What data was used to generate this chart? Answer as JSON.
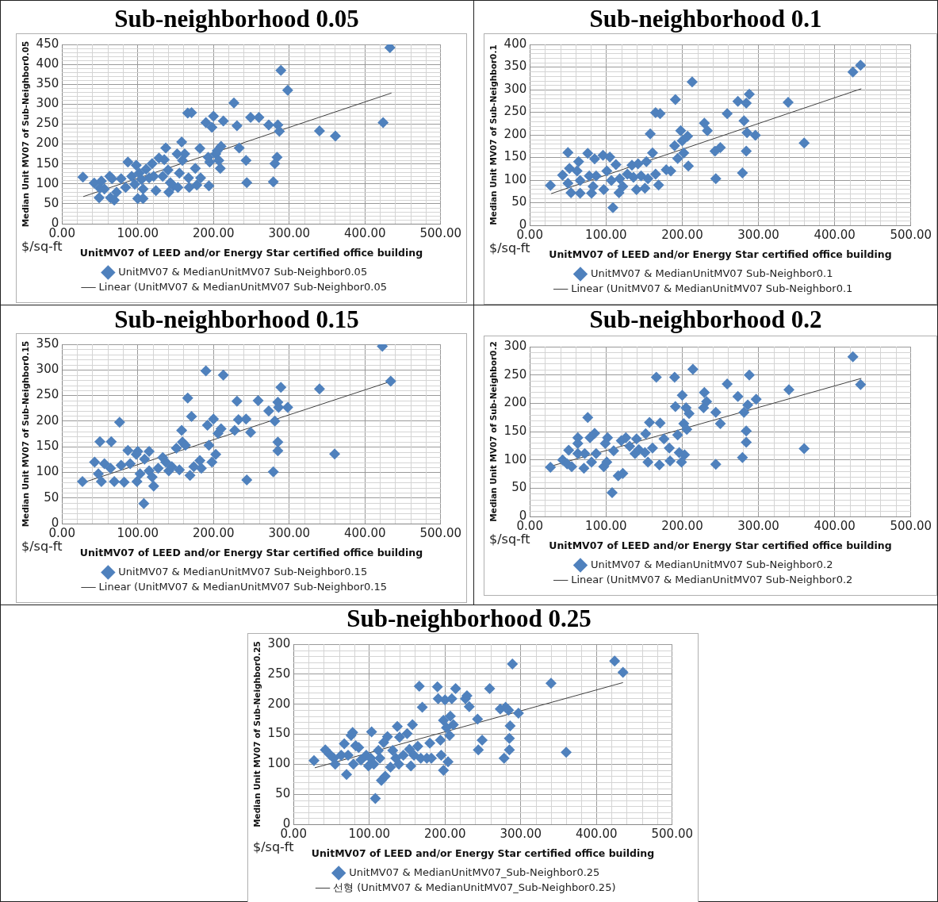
{
  "chart_data": [
    {
      "type": "scatter",
      "title": "Sub-neighborhood 0.05",
      "xlabel": "UnitMV07 of LEED and/or Energy Star certified office building",
      "ylabel": "Median Unit MV07 of Sub-Neighbor0.05",
      "annotations": [
        "$/sq-ft"
      ],
      "xlim": [
        0,
        500
      ],
      "xticks": [
        {
          "value": 0,
          "label": "0.00"
        },
        {
          "value": 100,
          "label": "100.00"
        },
        {
          "value": 200,
          "label": "200.00"
        },
        {
          "value": 300,
          "label": "300.00"
        },
        {
          "value": 400,
          "label": "400.00"
        },
        {
          "value": 500,
          "label": "500.00"
        }
      ],
      "ylim": [
        0,
        450
      ],
      "yticks": [
        0,
        50,
        100,
        150,
        200,
        250,
        300,
        350,
        400,
        450
      ],
      "grid": true,
      "legend": "bottom",
      "marker": "diamond",
      "series": [
        {
          "name": "UnitMV07 & MedianUnitMV07 Sub-Neighbor0.05",
          "color": "#4f81bd",
          "x": [
            27.6,
            42.5,
            52,
            50,
            49,
            56,
            63,
            66,
            64,
            69,
            72,
            78,
            84,
            87,
            92,
            96,
            98,
            102,
            100,
            107,
            105,
            107,
            111,
            115,
            119,
            121,
            124,
            128,
            133,
            135,
            137,
            140,
            141,
            143,
            147,
            152,
            153,
            155,
            158,
            159,
            162,
            167,
            168,
            166,
            171,
            176,
            178,
            182,
            183,
            190,
            193,
            194,
            195,
            198,
            200,
            203,
            205,
            207,
            209,
            210,
            213,
            227,
            231,
            234,
            243,
            244,
            249,
            260,
            273,
            279,
            281,
            284,
            285,
            287,
            289,
            298,
            340,
            361,
            424,
            433
          ],
          "values": [
            117,
            102,
            107,
            89,
            65,
            87,
            119,
            113,
            65,
            59,
            79,
            113,
            91,
            155,
            119,
            99,
            147,
            127,
            63,
            63,
            111,
            87,
            137,
            115,
            151,
            119,
            83,
            165,
            119,
            161,
            190,
            135,
            79,
            103,
            95,
            175,
            91,
            127,
            205,
            159,
            175,
            115,
            91,
            278,
            279,
            139,
            97,
            189,
            115,
            254,
            167,
            95,
            155,
            242,
            270,
            175,
            183,
            159,
            139,
            194,
            258,
            303,
            246,
            190,
            159,
            103,
            267,
            267,
            248,
            105,
            151,
            167,
            248,
            232,
            385,
            335,
            233,
            220,
            254,
            442
          ]
        },
        {
          "name": "Linear (UnitMV07 & MedianUnitMV07 Sub-Neighbor0.05",
          "type": "line",
          "marker": "none",
          "color": "#404040",
          "x": [
            28,
            435
          ],
          "values": [
            68,
            328
          ]
        }
      ]
    },
    {
      "type": "scatter",
      "title": "Sub-neighborhood 0.1",
      "xlabel": "UnitMV07 of LEED and/or Energy Star certified office building",
      "ylabel": "Median Unit MV07 of Sub-Neighbor0.1",
      "annotations": [
        "$/sq-ft"
      ],
      "xlim": [
        0,
        500
      ],
      "xticks": [
        {
          "value": 0,
          "label": "0.00"
        },
        {
          "value": 100,
          "label": "100.00"
        },
        {
          "value": 200,
          "label": "200.00"
        },
        {
          "value": 300,
          "label": "300.00"
        },
        {
          "value": 400,
          "label": "400.00"
        },
        {
          "value": 500,
          "label": "500.00"
        }
      ],
      "ylim": [
        0,
        400
      ],
      "yticks": [
        0,
        50,
        100,
        150,
        200,
        250,
        300,
        350,
        400
      ],
      "grid": true,
      "legend": "bottom",
      "marker": "diamond",
      "series": [
        {
          "name": "UnitMV07 & MedianUnitMV07 Sub-Neighbor0.1",
          "color": "#4f81bd",
          "x": [
            27,
            43,
            50,
            50,
            52,
            54,
            64,
            62,
            66,
            66,
            76,
            78,
            81,
            85,
            87,
            83,
            96,
            97,
            101,
            105,
            109,
            107,
            113,
            117,
            118,
            122,
            128,
            134,
            136,
            140,
            142,
            146,
            151,
            153,
            155,
            158,
            161,
            165,
            169,
            165,
            171,
            179,
            185,
            191,
            190,
            194,
            198,
            200,
            202,
            207,
            208,
            213,
            229,
            233,
            243,
            244,
            250,
            259,
            273,
            279,
            281,
            284,
            285,
            284,
            288,
            296,
            339,
            360,
            424,
            434
          ],
          "values": [
            88,
            111,
            161,
            93,
            126,
            72,
            141,
            120,
            99,
            71,
            159,
            109,
            71,
            147,
            109,
            86,
            155,
            79,
            120,
            151,
            39,
            99,
            134,
            72,
            103,
            86,
            113,
            133,
            106,
            79,
            136,
            109,
            82,
            141,
            103,
            202,
            160,
            113,
            89,
            249,
            247,
            123,
            120,
            278,
            176,
            148,
            209,
            187,
            160,
            197,
            131,
            317,
            226,
            209,
            164,
            103,
            172,
            247,
            274,
            116,
            231,
            270,
            205,
            164,
            290,
            199,
            272,
            182,
            339,
            354
          ]
        },
        {
          "name": "Linear (UnitMV07 & MedianUnitMV07 Sub-Neighbor0.1",
          "type": "line",
          "marker": "none",
          "color": "#404040",
          "x": [
            28,
            435
          ],
          "values": [
            70,
            302
          ]
        }
      ]
    },
    {
      "type": "scatter",
      "title": "Sub-neighborhood 0.15",
      "xlabel": "UnitMV07 of LEED and/or Energy Star certified office building",
      "ylabel": "Median Unit MV07 of Sub-Neighbor0.15",
      "annotations": [
        "$/sq-ft"
      ],
      "xlim": [
        0,
        500
      ],
      "xticks": [
        {
          "value": 0,
          "label": "0.00"
        },
        {
          "value": 100,
          "label": "100.00"
        },
        {
          "value": 200,
          "label": "200.00"
        },
        {
          "value": 300,
          "label": "300.00"
        },
        {
          "value": 400,
          "label": "400.00"
        },
        {
          "value": 500,
          "label": "500.00"
        }
      ],
      "ylim": [
        0,
        350
      ],
      "yticks": [
        0,
        50,
        100,
        150,
        200,
        250,
        300,
        350
      ],
      "grid": true,
      "legend": "bottom",
      "marker": "diamond",
      "series": [
        {
          "name": "UnitMV07 & MedianUnitMV07 Sub-Neighbor0.15",
          "color": "#4f81bd",
          "x": [
            27,
            43,
            50,
            48,
            52,
            56,
            65,
            64,
            69,
            76,
            78,
            82,
            87,
            90,
            98,
            99,
            100,
            103,
            108,
            109,
            115,
            115,
            119,
            121,
            127,
            133,
            137,
            141,
            145,
            151,
            155,
            158,
            159,
            163,
            166,
            169,
            171,
            174,
            182,
            184,
            190,
            192,
            194,
            198,
            200,
            203,
            206,
            210,
            213,
            228,
            231,
            233,
            243,
            244,
            249,
            259,
            273,
            279,
            281,
            285,
            286,
            285,
            285,
            289,
            298,
            340,
            360,
            423,
            434
          ],
          "values": [
            82,
            120,
            160,
            97,
            82,
            117,
            160,
            108,
            82,
            198,
            114,
            81,
            143,
            117,
            135,
            82,
            141,
            97,
            39,
            126,
            141,
            103,
            91,
            73,
            108,
            129,
            120,
            103,
            111,
            147,
            105,
            182,
            159,
            153,
            245,
            94,
            209,
            111,
            123,
            108,
            298,
            192,
            153,
            120,
            204,
            135,
            176,
            185,
            290,
            182,
            239,
            203,
            204,
            85,
            178,
            240,
            220,
            101,
            200,
            237,
            227,
            159,
            142,
            266,
            227,
            263,
            136,
            346,
            278
          ]
        },
        {
          "name": "Linear (UnitMV07 & MedianUnitMV07 Sub-Neighbor0.15",
          "type": "line",
          "marker": "none",
          "color": "#404040",
          "x": [
            28,
            435
          ],
          "values": [
            80,
            278
          ]
        }
      ]
    },
    {
      "type": "scatter",
      "title": "Sub-neighborhood 0.2",
      "xlabel": "UnitMV07 of LEED and/or Energy Star certified office building",
      "ylabel": "Median Unit MV07 of Sub-Neighbor0.2",
      "annotations": [
        "$/sq-ft"
      ],
      "xlim": [
        0,
        500
      ],
      "xticks": [
        {
          "value": 0,
          "label": "0.00"
        },
        {
          "value": 100,
          "label": "100.00"
        },
        {
          "value": 200,
          "label": "200.00"
        },
        {
          "value": 300,
          "label": "300.00"
        },
        {
          "value": 400,
          "label": "400.00"
        },
        {
          "value": 500,
          "label": "500.00"
        }
      ],
      "ylim": [
        0,
        300
      ],
      "yticks": [
        0,
        50,
        100,
        150,
        200,
        250,
        300
      ],
      "grid": true,
      "legend": "bottom",
      "marker": "diamond",
      "series": [
        {
          "name": "UnitMV07 & MedianUnitMV07 Sub-Neighbor0.2",
          "color": "#4f81bd",
          "x": [
            27,
            43,
            51,
            49,
            55,
            63,
            63,
            63,
            71,
            72,
            76,
            79,
            81,
            85,
            87,
            97,
            101,
            99,
            102,
            108,
            110,
            116,
            122,
            120,
            126,
            131,
            138,
            140,
            143,
            151,
            152,
            155,
            157,
            161,
            166,
            170,
            171,
            176,
            183,
            184,
            190,
            191,
            194,
            196,
            199,
            200,
            202,
            205,
            206,
            209,
            203,
            214,
            228,
            229,
            232,
            244,
            244,
            250,
            259,
            273,
            279,
            281,
            284,
            284,
            286,
            288,
            297,
            340,
            360,
            424,
            434
          ],
          "values": [
            87,
            100,
            117,
            93,
            88,
            139,
            129,
            111,
            85,
            111,
            175,
            139,
            96,
            147,
            111,
            88,
            96,
            129,
            139,
            42,
            116,
            72,
            76,
            134,
            139,
            124,
            111,
            137,
            118,
            113,
            146,
            96,
            166,
            121,
            246,
            91,
            165,
            137,
            121,
            98,
            246,
            194,
            144,
            113,
            96,
            214,
            164,
            192,
            154,
            182,
            109,
            260,
            192,
            219,
            203,
            184,
            92,
            164,
            234,
            212,
            104,
            184,
            151,
            131,
            197,
            250,
            207,
            224,
            120,
            282,
            233
          ]
        },
        {
          "name": "Linear (UnitMV07 & MedianUnitMV07 Sub-Neighbor0.2",
          "type": "line",
          "marker": "none",
          "color": "#404040",
          "x": [
            28,
            435
          ],
          "values": [
            89,
            244
          ]
        }
      ]
    },
    {
      "type": "scatter",
      "title": "Sub-neighborhood 0.25",
      "xlabel": "UnitMV07 of LEED and/or Energy Star certified office building",
      "ylabel": "Median Unit MV07 of Sub-Neighbor0.25",
      "annotations": [
        "$/sq-ft"
      ],
      "xlim": [
        0,
        500
      ],
      "xticks": [
        {
          "value": 0,
          "label": "0.00"
        },
        {
          "value": 100,
          "label": "100.00"
        },
        {
          "value": 200,
          "label": "200.00"
        },
        {
          "value": 300,
          "label": "300.00"
        },
        {
          "value": 400,
          "label": "400.00"
        },
        {
          "value": 500,
          "label": "500.00"
        }
      ],
      "ylim": [
        0,
        300
      ],
      "yticks": [
        0,
        50,
        100,
        150,
        200,
        250,
        300
      ],
      "grid": true,
      "legend": "bottom",
      "marker": "diamond",
      "series": [
        {
          "name": "UnitMV07 & MedianUnitMV07_Sub-Neighbor0.25",
          "color": "#4f81bd",
          "x": [
            27,
            42,
            48,
            53,
            55,
            67,
            63,
            70,
            72,
            76,
            78,
            79,
            82,
            86,
            89,
            96,
            99,
            103,
            102,
            106,
            108,
            112,
            114,
            116,
            121,
            119,
            124,
            128,
            131,
            135,
            137,
            139,
            140,
            145,
            150,
            153,
            155,
            157,
            159,
            164,
            166,
            168,
            170,
            176,
            180,
            182,
            190,
            191,
            194,
            195,
            198,
            198,
            200,
            202,
            204,
            206,
            207,
            209,
            211,
            214,
            227,
            229,
            232,
            243,
            244,
            249,
            259,
            273,
            278,
            280,
            284,
            286,
            285,
            285,
            289,
            297,
            340,
            360,
            424,
            435
          ],
          "values": [
            106,
            124,
            116,
            110,
            100,
            134,
            115,
            83,
            115,
            148,
            153,
            100,
            131,
            128,
            107,
            115,
            97,
            154,
            110,
            100,
            43,
            123,
            110,
            73,
            80,
            136,
            146,
            95,
            123,
            110,
            163,
            100,
            145,
            115,
            151,
            125,
            97,
            166,
            115,
            130,
            230,
            110,
            195,
            110,
            135,
            110,
            229,
            209,
            140,
            115,
            90,
            173,
            207,
            161,
            104,
            148,
            180,
            209,
            166,
            226,
            209,
            214,
            196,
            175,
            124,
            140,
            226,
            192,
            110,
            195,
            190,
            164,
            143,
            124,
            267,
            185,
            235,
            120,
            272,
            253
          ]
        },
        {
          "name": "선형 (UnitMV07 & MedianUnitMV07_Sub-Neighbor0.25)",
          "type": "line",
          "marker": "none",
          "color": "#404040",
          "x": [
            28,
            435
          ],
          "values": [
            94,
            236
          ]
        }
      ]
    }
  ]
}
